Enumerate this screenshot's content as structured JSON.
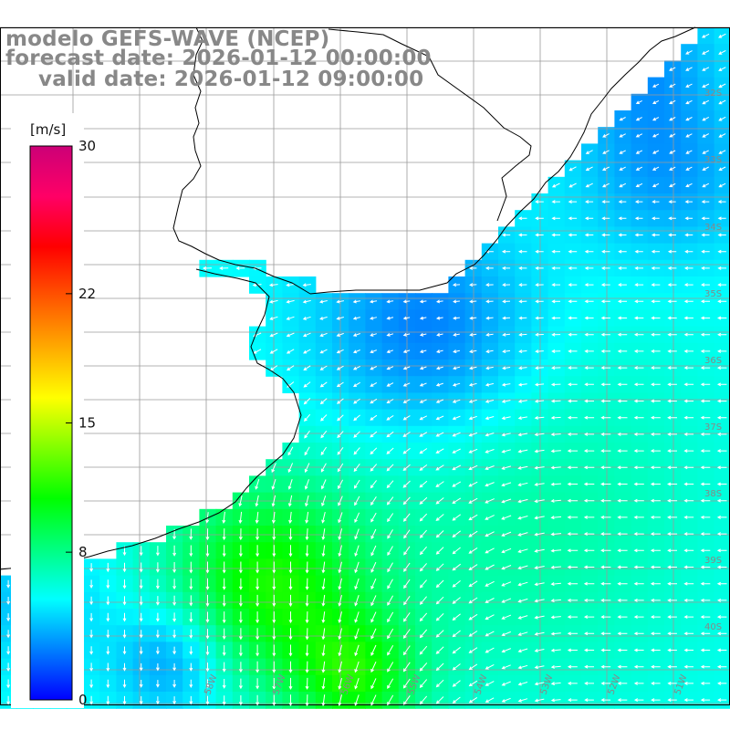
{
  "title": {
    "line1": "modelo GEFS-WAVE (NCEP)",
    "line2": "forecast date: 2026-01-12 00:00:00",
    "line3": "valid date: 2026-01-12 09:00:00"
  },
  "colorbar": {
    "unit": "[m/s]",
    "ticks": [
      "30",
      "22",
      "15",
      "8",
      "0"
    ],
    "tick_values": [
      30,
      22,
      15,
      8,
      0
    ],
    "range": [
      0,
      30
    ],
    "stops": [
      "#0000ff",
      "#0080ff",
      "#00ffff",
      "#00ff80",
      "#00ff00",
      "#80ff00",
      "#ffff00",
      "#ffaa00",
      "#ff5500",
      "#ff0000",
      "#ff0066",
      "#cc0077"
    ]
  },
  "grid": {
    "lat_labels": [
      "32S",
      "33S",
      "34S",
      "35S",
      "36S",
      "37S",
      "38S",
      "39S",
      "40S"
    ],
    "lon_labels": [
      "58W",
      "57W",
      "56W",
      "55W",
      "54W",
      "53W",
      "52W",
      "51W"
    ]
  },
  "colors": {
    "land": "#ffffff",
    "gridline": "#9a9a9a",
    "coast": "#000000",
    "arrow": "#ffffff",
    "label_gray": "#888888"
  },
  "map_data": {
    "variable": "wind speed and direction",
    "region": "Uruguay / Rio de la Plata, South Atlantic",
    "lat_range": [
      "30S",
      "41S"
    ],
    "lon_range": [
      "59W",
      "50W"
    ]
  }
}
